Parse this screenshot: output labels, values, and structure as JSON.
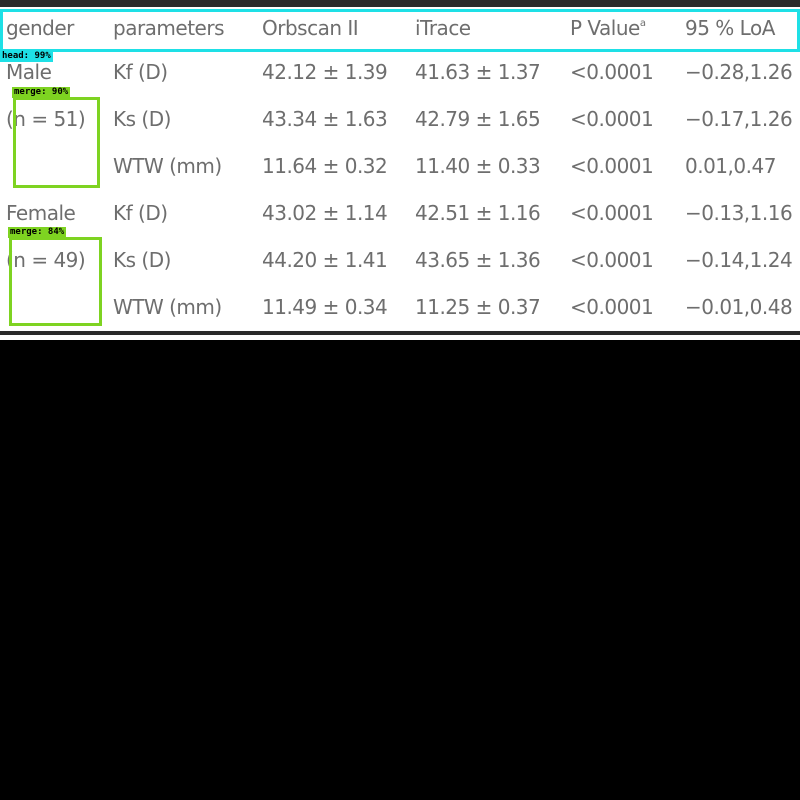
{
  "table": {
    "headers": [
      "gender",
      "parameters",
      "Orbscan II",
      "iTrace",
      "P Value",
      "95 % LoA"
    ],
    "pvalue_sup": "a",
    "groups": [
      {
        "name": "Male",
        "count": "(n = 51)",
        "rows": [
          {
            "parameter": "Kf (D)",
            "orbscan": "42.12 ± 1.39",
            "itrace": "41.63 ± 1.37",
            "p": "<0.0001",
            "loa": "−0.28,1.26"
          },
          {
            "parameter": "Ks (D)",
            "orbscan": "43.34 ± 1.63",
            "itrace": "42.79 ± 1.65",
            "p": "<0.0001",
            "loa": "−0.17,1.26"
          },
          {
            "parameter": "WTW (mm)",
            "orbscan": "11.64 ± 0.32",
            "itrace": "11.40 ± 0.33",
            "p": "<0.0001",
            "loa": "0.01,0.47"
          }
        ]
      },
      {
        "name": "Female",
        "count": "(n = 49)",
        "rows": [
          {
            "parameter": "Kf (D)",
            "orbscan": "43.02 ± 1.14",
            "itrace": "42.51 ± 1.16",
            "p": "<0.0001",
            "loa": "−0.13,1.16"
          },
          {
            "parameter": "Ks (D)",
            "orbscan": "44.20 ± 1.41",
            "itrace": "43.65 ± 1.36",
            "p": "<0.0001",
            "loa": "−0.14,1.24"
          },
          {
            "parameter": "WTW (mm)",
            "orbscan": "11.49 ± 0.34",
            "itrace": "11.25 ± 0.37",
            "p": "<0.0001",
            "loa": "−0.01,0.48"
          }
        ]
      }
    ]
  },
  "detections": [
    {
      "label": "head: 99%",
      "color": "#1ee0e6"
    },
    {
      "label": "merge: 90%",
      "color": "#7ed321"
    },
    {
      "label": "merge: 84%",
      "color": "#7ed321"
    }
  ]
}
